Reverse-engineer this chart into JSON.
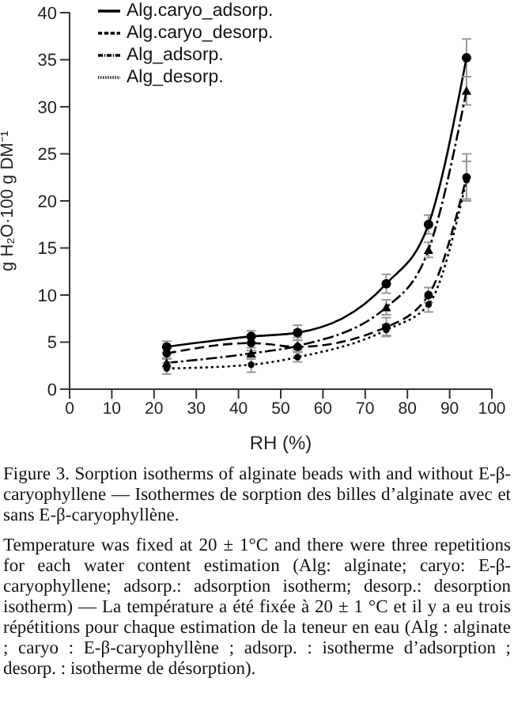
{
  "chart_data": {
    "type": "line",
    "title": "Figure 3. Sorption isotherms of alginate beads with and without E-β-caryophyllene — Isothermes de sorption des billes d’alginate avec et sans E-β-caryophyllène.",
    "xlabel": "RH (%)",
    "ylabel": "g H₂O·100 g DM⁻¹",
    "x": [
      23,
      43,
      54,
      75,
      85,
      94
    ],
    "series": [
      {
        "name": "Alg.caryo_adsorp.",
        "color": "#000000",
        "line_style": "solid",
        "marker": "circle",
        "values": [
          4.5,
          5.6,
          6.0,
          11.2,
          17.5,
          35.2
        ],
        "errors": [
          0.6,
          0.6,
          0.8,
          1.0,
          1.0,
          2.0
        ]
      },
      {
        "name": "Alg.caryo_desorp.",
        "color": "#000000",
        "line_style": "dashed",
        "marker": "circle",
        "values": [
          3.8,
          4.9,
          4.5,
          6.6,
          10.0,
          22.5
        ],
        "errors": [
          0.6,
          0.8,
          1.0,
          1.0,
          0.8,
          2.5
        ]
      },
      {
        "name": "Alg_adsorp.",
        "color": "#000000",
        "line_style": "dashdot",
        "marker": "triangle",
        "values": [
          2.8,
          3.8,
          4.6,
          8.7,
          14.8,
          31.7
        ],
        "errors": [
          0.5,
          0.6,
          0.6,
          0.8,
          0.8,
          1.5
        ]
      },
      {
        "name": "Alg_desorp.",
        "color": "#000000",
        "line_style": "dotted",
        "marker": "circle",
        "values": [
          2.2,
          2.6,
          3.4,
          6.3,
          9.0,
          22.2
        ],
        "errors": [
          0.6,
          0.8,
          0.5,
          0.6,
          0.8,
          2.0
        ]
      }
    ],
    "xlim": [
      0,
      100
    ],
    "xticks": [
      0,
      10,
      20,
      30,
      40,
      50,
      60,
      70,
      80,
      90,
      100
    ],
    "ylim": [
      0,
      40
    ],
    "yticks": [
      0,
      5,
      10,
      15,
      20,
      25,
      30,
      35,
      40
    ],
    "grid": false,
    "legend": "top left",
    "annotations": [
      "Temperature was fixed at 20 ± 1°C and there were three repetitions for each water content estimation (Alg: alginate; caryo: E-β-caryophyllene; adsorp.: adsorption isotherm; desorp.: desorption isotherm) — La température a été fixée à 20 ± 1 °C et il y a eu trois répétitions pour chaque estimation de la teneur en eau (Alg : alginate ; caryo : E-β-caryophyllène ; adsorp. : isotherme d’adsorption ; desorp. : isotherme de désorption)."
    ]
  }
}
